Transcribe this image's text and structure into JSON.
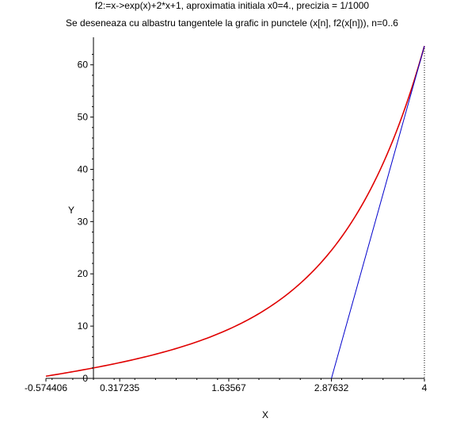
{
  "chart_data": {
    "type": "line",
    "title": "f2:=x->exp(x)+2*x+1, aproximatia initiala x0=4.,  precizia = 1/1000",
    "subtitle": "Se deseneaza cu albastru tangentele la grafic in punctele (x[n], f2(x[n])), n=0..6",
    "xlabel": "X",
    "ylabel": "Y",
    "xlim": [
      -0.574406,
      4
    ],
    "ylim": [
      0,
      63.6
    ],
    "x_ticks": [
      "-0.574406",
      "0.317235",
      "1.63567",
      "2.87632",
      "4"
    ],
    "y_ticks": [
      "0",
      "10",
      "20",
      "30",
      "40",
      "50",
      "60"
    ],
    "grid": false,
    "series": [
      {
        "color": "#e00000",
        "function": "exp(x)+2*x+1",
        "x": [
          -0.5744,
          -0.25,
          0,
          0.25,
          0.5,
          0.75,
          1,
          1.25,
          1.5,
          1.75,
          2,
          2.25,
          2.5,
          2.75,
          3,
          3.25,
          3.5,
          3.75,
          4
        ],
        "y": [
          0.414,
          1.279,
          2.0,
          2.784,
          3.649,
          4.617,
          5.718,
          6.99,
          8.482,
          10.255,
          12.389,
          14.988,
          18.182,
          22.143,
          27.086,
          33.29,
          41.115,
          51.021,
          63.598
        ]
      },
      {
        "color": "#0000cc",
        "x": [
          2.87632,
          4
        ],
        "y": [
          0,
          63.598
        ]
      }
    ],
    "vertical_guide": {
      "x": 4,
      "style": "dotted"
    }
  }
}
